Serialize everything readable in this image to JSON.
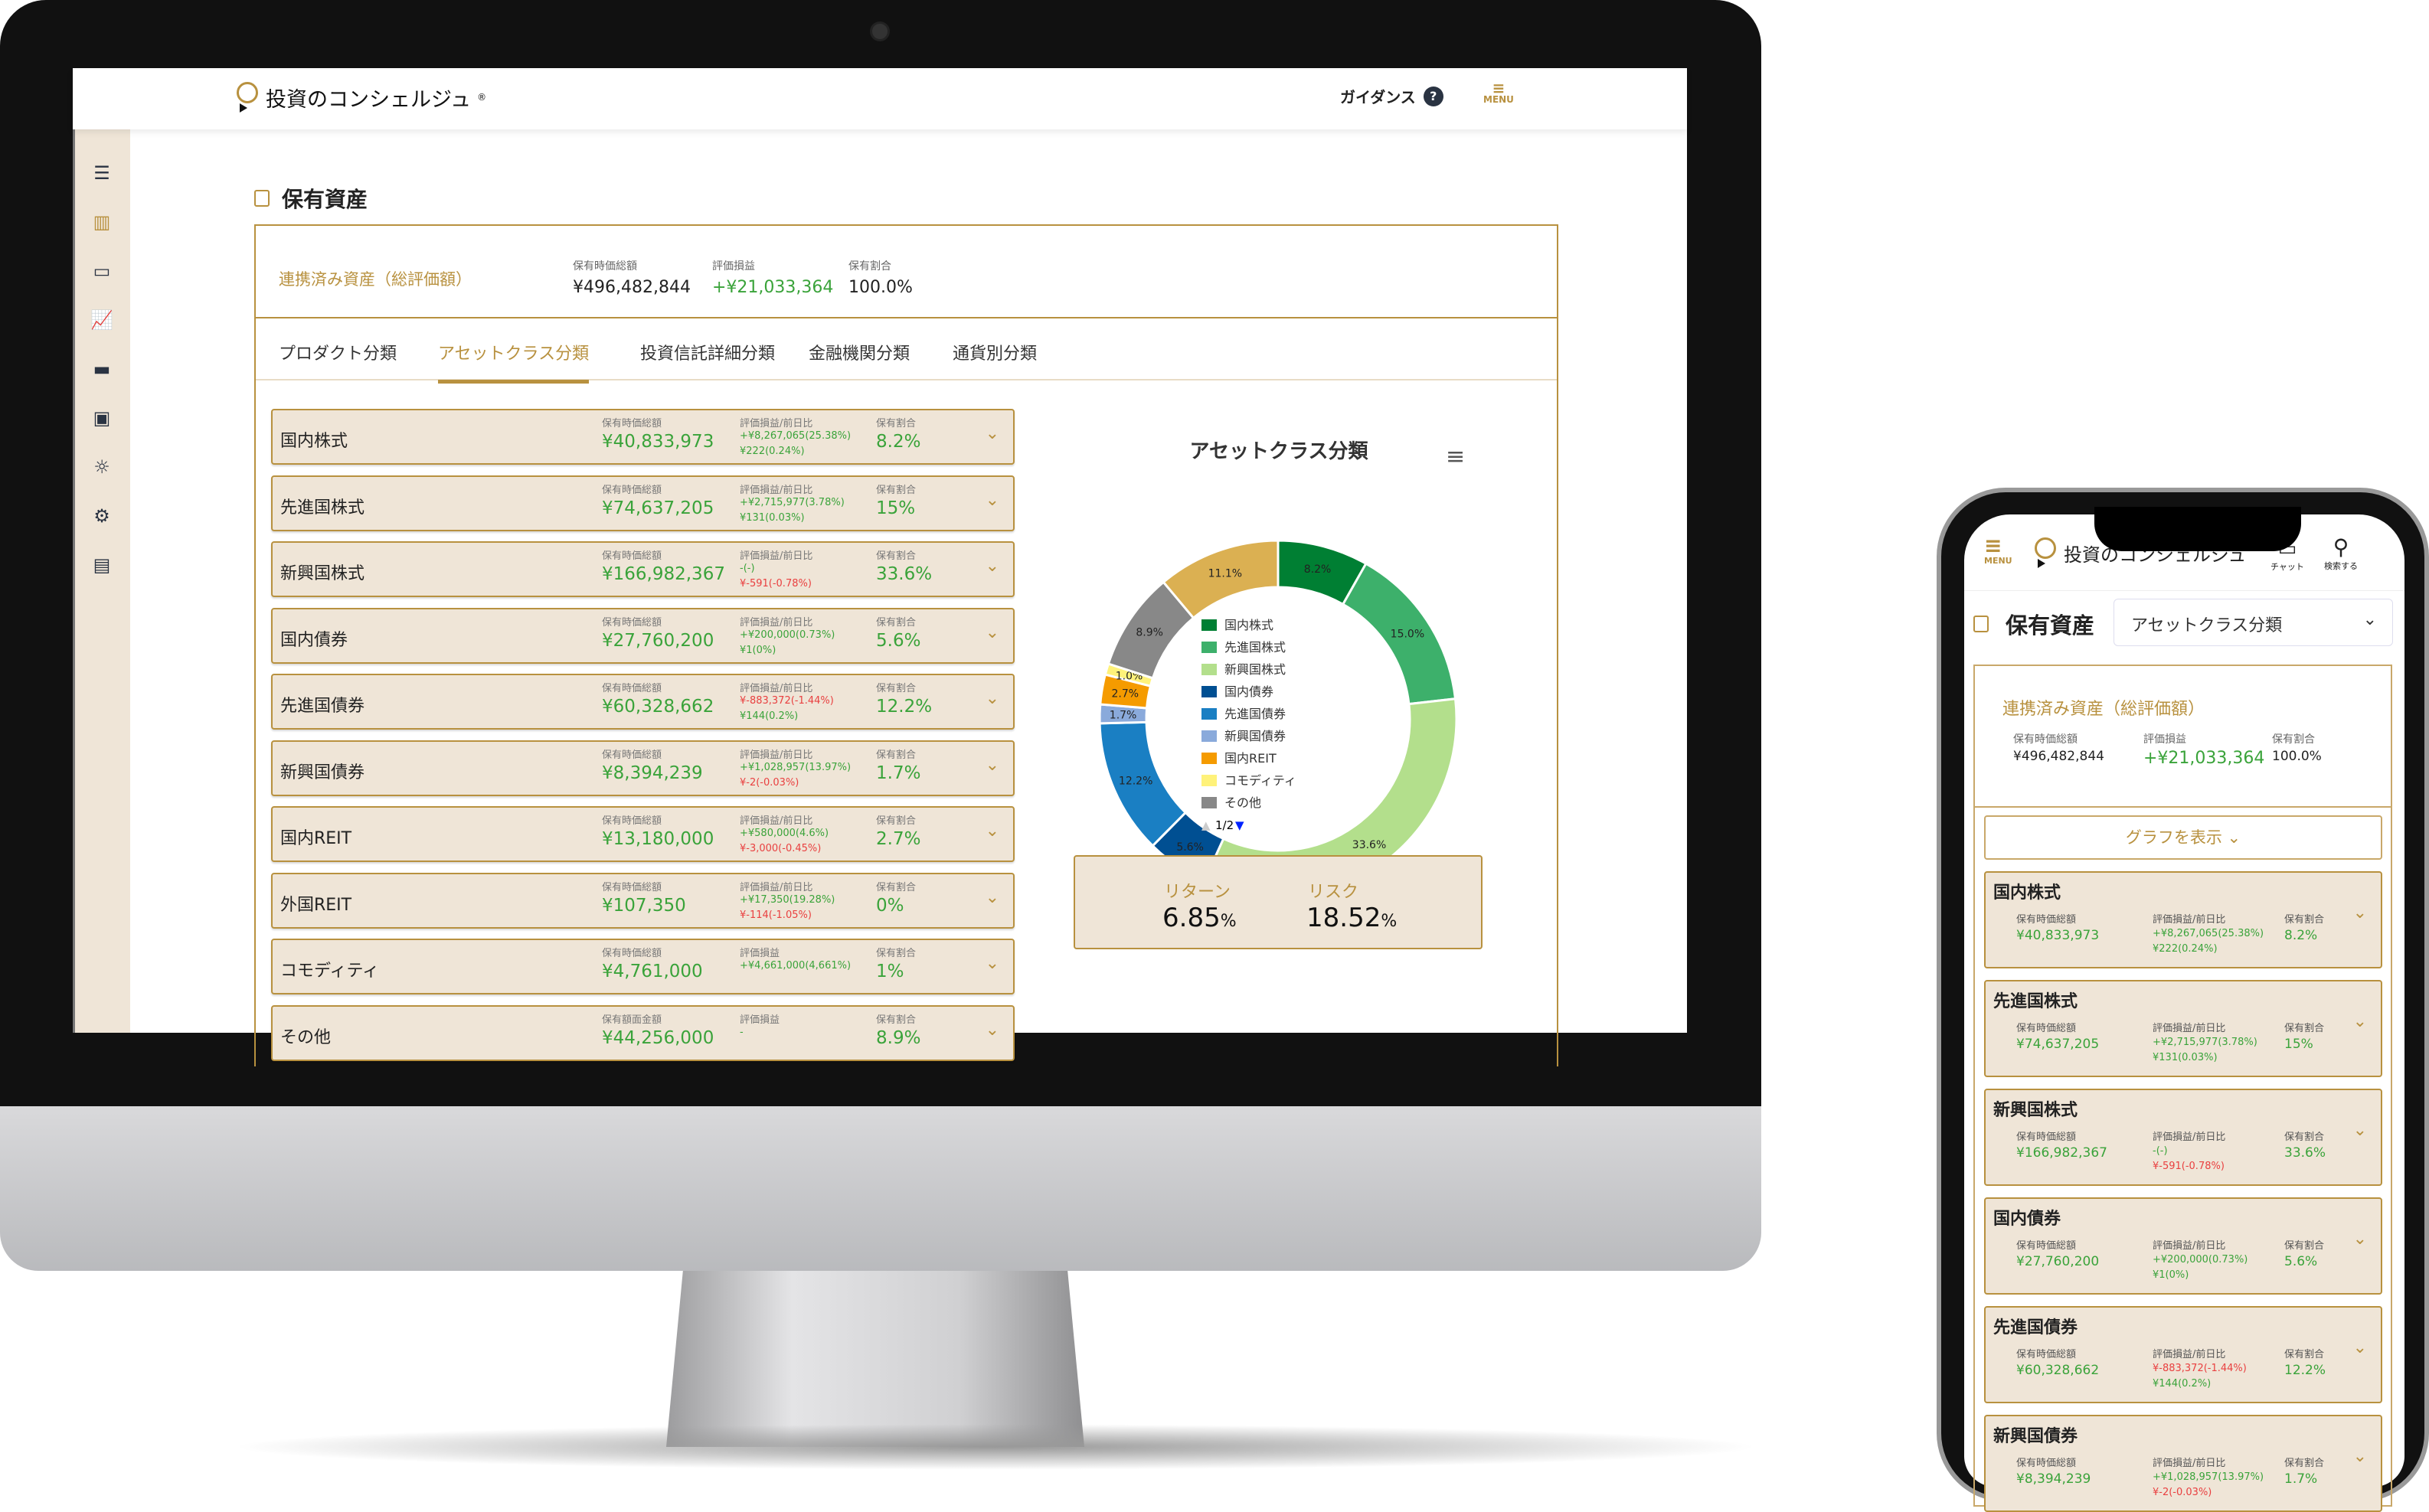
{
  "app": {
    "logo": "投資のコンシェルジュ",
    "guidance": "ガイダンス",
    "guidance_icon": "?",
    "menu": "MENU",
    "chat": "チャット",
    "search": "検索する"
  },
  "sidebar": {
    "icons": [
      "hamburger-icon",
      "bar-chart-icon",
      "card-icon",
      "line-chart-icon",
      "chat-icon",
      "profile-icon",
      "lightbulb-icon",
      "gear-icon",
      "document-icon"
    ]
  },
  "page": {
    "title": "保有資産"
  },
  "summary": {
    "label": "連携済み資産（総評価額）",
    "k_value": "保有時価総額",
    "value": "¥496,482,844",
    "k_pl": "評価損益",
    "pl": "+¥21,033,364",
    "k_ratio": "保有割合",
    "ratio": "100.0%"
  },
  "tabs": [
    {
      "label": "プロダクト分類"
    },
    {
      "label": "アセットクラス分類",
      "active": true
    },
    {
      "label": "投資信託詳細分類"
    },
    {
      "label": "金融機関分類"
    },
    {
      "label": "通貨別分類"
    }
  ],
  "rows": [
    {
      "name": "国内株式",
      "k_value": "保有時価総額",
      "value": "¥40,833,973",
      "k_pl": "評価損益/前日比",
      "pl": "+¥8,267,065(25.38%)",
      "pl_color": "g",
      "day": "¥222(0.24%)",
      "day_color": "g",
      "k_ratio": "保有割合",
      "ratio": "8.2%"
    },
    {
      "name": "先進国株式",
      "k_value": "保有時価総額",
      "value": "¥74,637,205",
      "k_pl": "評価損益/前日比",
      "pl": "+¥2,715,977(3.78%)",
      "pl_color": "g",
      "day": "¥131(0.03%)",
      "day_color": "g",
      "k_ratio": "保有割合",
      "ratio": "15%"
    },
    {
      "name": "新興国株式",
      "k_value": "保有時価総額",
      "value": "¥166,982,367",
      "k_pl": "評価損益/前日比",
      "pl": "-(-)",
      "pl_color": "g",
      "day": "¥-591(-0.78%)",
      "day_color": "r",
      "k_ratio": "保有割合",
      "ratio": "33.6%"
    },
    {
      "name": "国内債券",
      "k_value": "保有時価総額",
      "value": "¥27,760,200",
      "k_pl": "評価損益/前日比",
      "pl": "+¥200,000(0.73%)",
      "pl_color": "g",
      "day": "¥1(0%)",
      "day_color": "g",
      "k_ratio": "保有割合",
      "ratio": "5.6%"
    },
    {
      "name": "先進国債券",
      "k_value": "保有時価総額",
      "value": "¥60,328,662",
      "k_pl": "評価損益/前日比",
      "pl": "¥-883,372(-1.44%)",
      "pl_color": "r",
      "day": "¥144(0.2%)",
      "day_color": "g",
      "k_ratio": "保有割合",
      "ratio": "12.2%"
    },
    {
      "name": "新興国債券",
      "k_value": "保有時価総額",
      "value": "¥8,394,239",
      "k_pl": "評価損益/前日比",
      "pl": "+¥1,028,957(13.97%)",
      "pl_color": "g",
      "day": "¥-2(-0.03%)",
      "day_color": "r",
      "k_ratio": "保有割合",
      "ratio": "1.7%"
    },
    {
      "name": "国内REIT",
      "k_value": "保有時価総額",
      "value": "¥13,180,000",
      "k_pl": "評価損益/前日比",
      "pl": "+¥580,000(4.6%)",
      "pl_color": "g",
      "day": "¥-3,000(-0.45%)",
      "day_color": "r",
      "k_ratio": "保有割合",
      "ratio": "2.7%"
    },
    {
      "name": "外国REIT",
      "k_value": "保有時価総額",
      "value": "¥107,350",
      "k_pl": "評価損益/前日比",
      "pl": "+¥17,350(19.28%)",
      "pl_color": "g",
      "day": "¥-114(-1.05%)",
      "day_color": "r",
      "k_ratio": "保有割合",
      "ratio": "0%"
    },
    {
      "name": "コモディティ",
      "k_value": "保有時価総額",
      "value": "¥4,761,000",
      "k_pl": "評価損益",
      "pl": "+¥4,661,000(4,661%)",
      "pl_color": "g",
      "day": "",
      "day_color": "g",
      "k_ratio": "保有割合",
      "ratio": "1%"
    },
    {
      "name": "その他",
      "k_value": "保有額面金額",
      "value": "¥44,256,000",
      "k_pl": "評価損益",
      "pl": "-",
      "pl_color": "g",
      "day": "",
      "day_color": "g",
      "k_ratio": "保有割合",
      "ratio": "8.9%"
    }
  ],
  "chart_data": {
    "type": "pie",
    "donut": true,
    "title": "アセットクラス分類",
    "legend_page": "1/2",
    "legend_placement": "center",
    "slices": [
      {
        "name": "国内株式",
        "value": 8.2,
        "label": "8.2%",
        "color": "#007f33"
      },
      {
        "name": "先進国株式",
        "value": 15.0,
        "label": "15.0%",
        "color": "#3db06b"
      },
      {
        "name": "新興国株式",
        "value": 33.6,
        "label": "33.6%",
        "color": "#b3df8c"
      },
      {
        "name": "国内債券",
        "value": 5.6,
        "label": "5.6%",
        "color": "#004f92"
      },
      {
        "name": "先進国債券",
        "value": 12.2,
        "label": "12.2%",
        "color": "#1a7fc3"
      },
      {
        "name": "新興国債券",
        "value": 1.7,
        "label": "1.7%",
        "color": "#8aaadb"
      },
      {
        "name": "国内REIT",
        "value": 2.7,
        "label": "2.7%",
        "color": "#f59b00"
      },
      {
        "name": "コモディティ",
        "value": 1.0,
        "label": "1.0%",
        "color": "#fff27a"
      },
      {
        "name": "その他",
        "value": 8.9,
        "label": "8.9%",
        "color": "#888888"
      },
      {
        "value": 11.1,
        "label": "11.1%",
        "color": "#dbb052"
      }
    ]
  },
  "metrics": {
    "return_label": "リターン",
    "return_value": "6.85",
    "risk_label": "リスク",
    "risk_value": "18.52",
    "unit": "%"
  },
  "mobile": {
    "select_value": "アセットクラス分類",
    "graph_button": "グラフを表示 ⌄"
  },
  "colors": {
    "accent": "#b8913f",
    "cream": "#efe5d7",
    "positive": "#3aa33a",
    "negative": "#e94040"
  }
}
